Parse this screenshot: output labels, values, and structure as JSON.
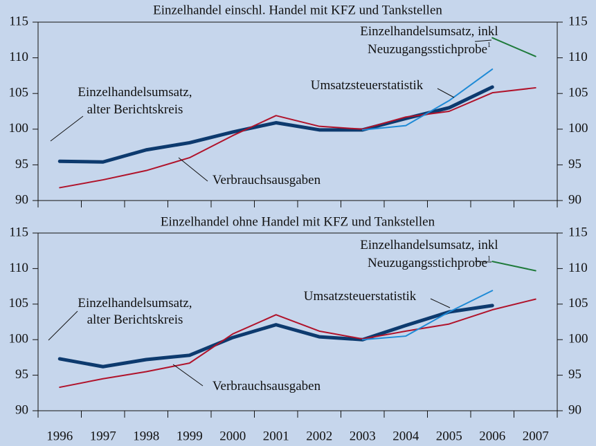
{
  "chart_data": [
    {
      "type": "line",
      "title": "Einzelhandel einschl. Handel mit KFZ und Tankstellen",
      "ylim": [
        90,
        115
      ],
      "yticks": [
        90,
        95,
        100,
        105,
        110,
        115
      ],
      "y2lim": [
        90,
        115
      ],
      "y2ticks": [
        90,
        95,
        100,
        105,
        110,
        115
      ],
      "series": [
        {
          "name": [
            "Einzelhandelsumsatz,",
            "alter Berichtskreis"
          ],
          "color": "#0d3a6e",
          "values": [
            95.5,
            95.4,
            97.1,
            98.1,
            99.6,
            100.9,
            99.9,
            99.9,
            101.5,
            103.0,
            105.9,
            null
          ]
        },
        {
          "name": [
            "Verbrauchsausgaben"
          ],
          "color": "#b0122a",
          "values": [
            91.8,
            92.9,
            94.2,
            96.0,
            99.1,
            101.9,
            100.4,
            100.0,
            101.7,
            102.5,
            105.1,
            105.8
          ]
        },
        {
          "name": [
            "Umsatzsteuerstatistik"
          ],
          "color": "#1e8ad6",
          "values": [
            null,
            null,
            null,
            null,
            null,
            null,
            null,
            99.9,
            100.5,
            104.0,
            108.4,
            null
          ]
        },
        {
          "name": [
            "Einzelhandelsumsatz, inkl",
            "Neuzugangsstichprobe"
          ],
          "footnote": "1",
          "color": "#1e7a3a",
          "values": [
            null,
            null,
            null,
            null,
            null,
            null,
            null,
            null,
            null,
            null,
            112.8,
            110.2
          ]
        }
      ]
    },
    {
      "type": "line",
      "title": "Einzelhandel ohne Handel mit KFZ und Tankstellen",
      "categories": [
        "1996",
        "1997",
        "1998",
        "1999",
        "2000",
        "2001",
        "2002",
        "2003",
        "2004",
        "2005",
        "2006",
        "2007"
      ],
      "ylim": [
        90,
        115
      ],
      "yticks": [
        90,
        95,
        100,
        105,
        110,
        115
      ],
      "y2lim": [
        90,
        115
      ],
      "y2ticks": [
        90,
        95,
        100,
        105,
        110,
        115
      ],
      "series": [
        {
          "name": [
            "Einzelhandelsumsatz,",
            "alter Berichtskreis"
          ],
          "color": "#0d3a6e",
          "values": [
            97.3,
            96.2,
            97.2,
            97.8,
            100.3,
            102.1,
            100.4,
            100.0,
            102.0,
            103.9,
            104.8,
            null
          ]
        },
        {
          "name": [
            "Verbrauchsausgaben"
          ],
          "color": "#b0122a",
          "values": [
            93.3,
            94.5,
            95.5,
            96.7,
            100.8,
            103.5,
            101.2,
            100.1,
            101.2,
            102.2,
            104.2,
            105.7
          ]
        },
        {
          "name": [
            "Umsatzsteuerstatistik"
          ],
          "color": "#1e8ad6",
          "values": [
            null,
            null,
            null,
            null,
            null,
            null,
            null,
            100.0,
            100.5,
            103.9,
            106.9,
            null
          ]
        },
        {
          "name": [
            "Einzelhandelsumsatz, inkl",
            "Neuzugangsstichprobe"
          ],
          "footnote": "1",
          "color": "#1e7a3a",
          "values": [
            null,
            null,
            null,
            null,
            null,
            null,
            null,
            null,
            null,
            null,
            111.0,
            109.7
          ]
        }
      ]
    }
  ]
}
